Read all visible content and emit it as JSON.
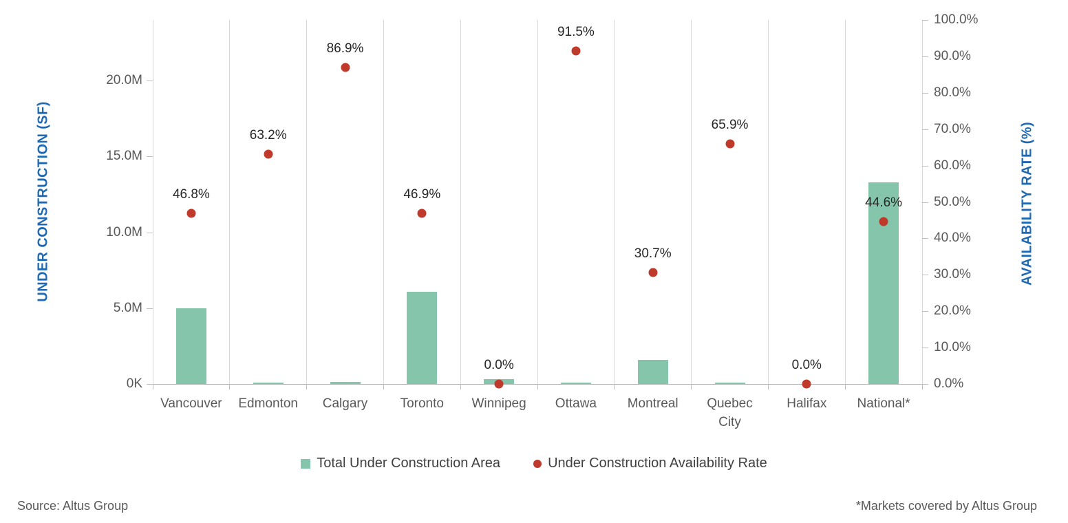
{
  "chart_data": {
    "type": "bar",
    "title": "",
    "categories": [
      "Vancouver",
      "Edmonton",
      "Calgary",
      "Toronto",
      "Winnipeg",
      "Ottawa",
      "Montreal",
      "Quebec City",
      "Halifax",
      "National*"
    ],
    "series": [
      {
        "name": "Total Under Construction Area",
        "type": "bar",
        "axis": "left",
        "unit": "million SF",
        "values": [
          5.0,
          0.1,
          0.15,
          6.1,
          0.3,
          0.1,
          1.6,
          0.1,
          0.0,
          13.3
        ]
      },
      {
        "name": "Under Construction Availability Rate",
        "type": "scatter",
        "axis": "right",
        "unit": "%",
        "values": [
          46.8,
          63.2,
          86.9,
          46.9,
          0.0,
          91.5,
          30.7,
          65.9,
          0.0,
          44.6
        ],
        "point_labels": [
          "46.8%",
          "63.2%",
          "86.9%",
          "46.9%",
          "0.0%",
          "91.5%",
          "30.7%",
          "65.9%",
          "0.0%",
          "44.6%"
        ]
      }
    ],
    "left_axis": {
      "title": "UNDER CONSTRUCTION (SF)",
      "max": 24,
      "ticks": [
        {
          "value": 0,
          "label": "0K"
        },
        {
          "value": 5,
          "label": "5.0M"
        },
        {
          "value": 10,
          "label": "10.0M"
        },
        {
          "value": 15,
          "label": "15.0M"
        },
        {
          "value": 20,
          "label": "20.0M"
        }
      ]
    },
    "right_axis": {
      "title": "AVAILABILITY RATE (%)",
      "max": 100,
      "ticks": [
        {
          "value": 0,
          "label": "0.0%"
        },
        {
          "value": 10,
          "label": "10.0%"
        },
        {
          "value": 20,
          "label": "20.0%"
        },
        {
          "value": 30,
          "label": "30.0%"
        },
        {
          "value": 40,
          "label": "40.0%"
        },
        {
          "value": 50,
          "label": "50.0%"
        },
        {
          "value": 60,
          "label": "60.0%"
        },
        {
          "value": 70,
          "label": "70.0%"
        },
        {
          "value": 80,
          "label": "80.0%"
        },
        {
          "value": 90,
          "label": "90.0%"
        },
        {
          "value": 100,
          "label": "100.0%"
        }
      ]
    },
    "grid": "vertical category separators only",
    "legend_position": "bottom"
  },
  "legend": {
    "items": [
      {
        "label": "Total Under Construction Area",
        "marker": "square",
        "color": "#85C5AB"
      },
      {
        "label": "Under Construction Availability Rate",
        "marker": "circle",
        "color": "#C03A2B"
      }
    ]
  },
  "footer": {
    "source": "Source: Altus Group",
    "note": "*Markets covered by Altus Group"
  },
  "colors": {
    "bar": "#85C5AB",
    "dot": "#C03A2B",
    "axis_title": "#1E69B4",
    "tick_text": "#595959",
    "gridline": "#D9D9D9",
    "axis_line": "#BFBFBF",
    "data_label": "#262626",
    "legend_text": "#404040"
  }
}
